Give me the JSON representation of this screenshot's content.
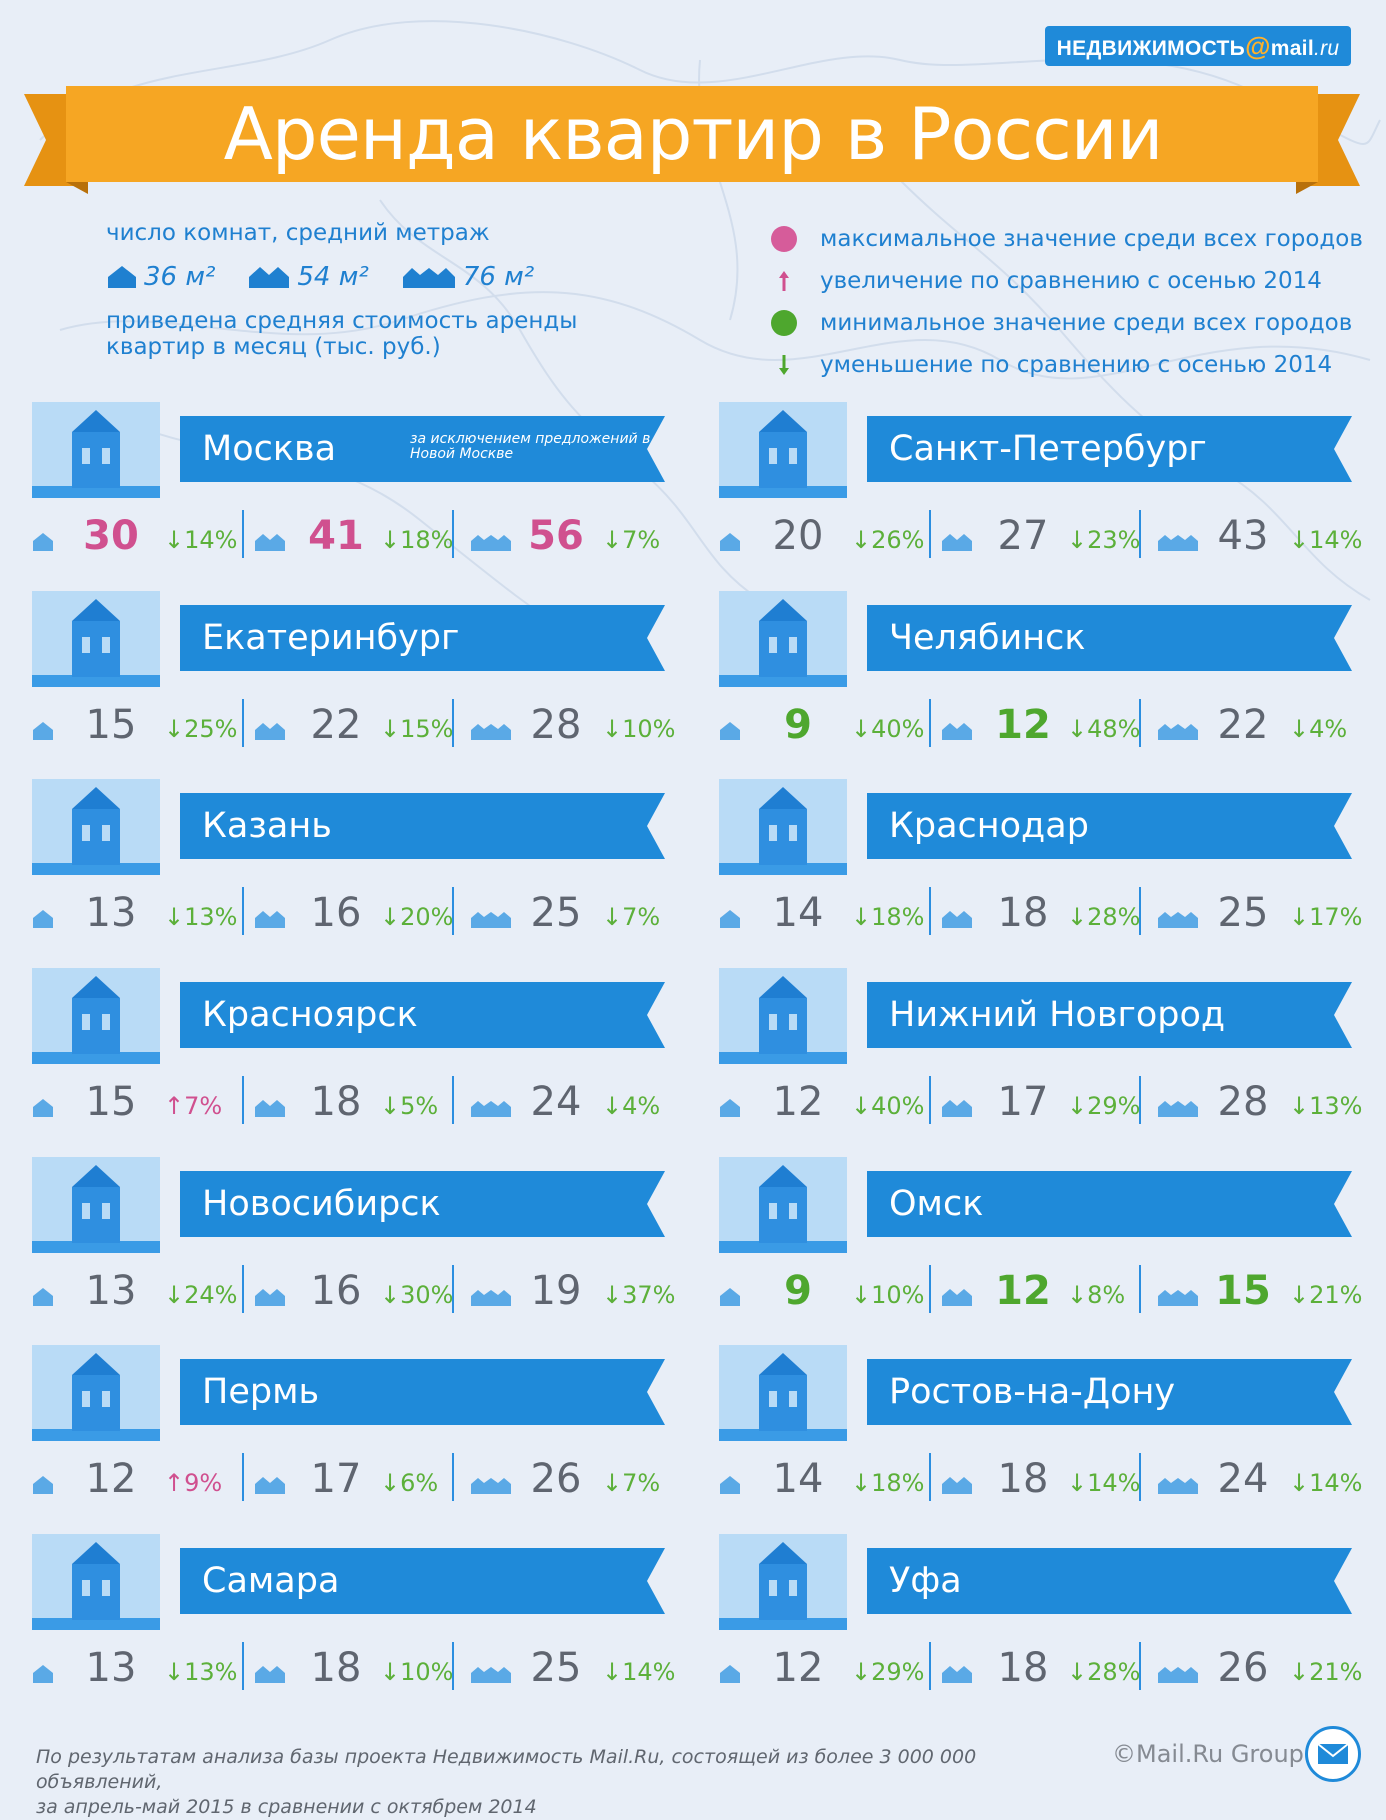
{
  "logo": {
    "brand": "НЕДВИЖИМОСТЬ",
    "at": "@",
    "domain": "mail",
    "tld": ".ru"
  },
  "title": "Аренда квартир в России",
  "legend": {
    "rooms_heading": "число комнат, средний метраж",
    "sizes": [
      "36 м²",
      "54 м²",
      "76 м²"
    ],
    "price_note_1": "приведена средняя стоимость аренды",
    "price_note_2": "квартир в месяц (тыс. руб.)",
    "items": [
      {
        "mark": "pink-dot",
        "text": "максимальное значение среди всех городов"
      },
      {
        "mark": "up-arrow",
        "text": "увеличение по сравнению с осенью 2014"
      },
      {
        "mark": "green-dot",
        "text": "минимальное значение среди всех городов"
      },
      {
        "mark": "down-arrow",
        "text": "уменьшение по сравнению с осенью 2014"
      }
    ]
  },
  "colors": {
    "max": "#d0508f",
    "min": "#4ea72e",
    "up": "#d0508f",
    "down": "#5cb03a",
    "banner": "#1f8ad9",
    "ribbon": "#f6a623"
  },
  "cities": [
    {
      "name": "Москва",
      "note": "за исключением предложений в Новой Москве",
      "icon": "kremlin-tower-icon",
      "values": [
        {
          "price": "30",
          "type": "max",
          "dir": "down",
          "change": "14%"
        },
        {
          "price": "41",
          "type": "max",
          "dir": "down",
          "change": "18%"
        },
        {
          "price": "56",
          "type": "max",
          "dir": "down",
          "change": "7%"
        }
      ]
    },
    {
      "name": "Санкт-Петербург",
      "note": "",
      "icon": "drawbridge-icon",
      "values": [
        {
          "price": "20",
          "type": "",
          "dir": "down",
          "change": "26%"
        },
        {
          "price": "27",
          "type": "",
          "dir": "down",
          "change": "23%"
        },
        {
          "price": "43",
          "type": "",
          "dir": "down",
          "change": "14%"
        }
      ]
    },
    {
      "name": "Екатеринбург",
      "note": "",
      "icon": "city-tower-icon",
      "values": [
        {
          "price": "15",
          "type": "",
          "dir": "down",
          "change": "25%"
        },
        {
          "price": "22",
          "type": "",
          "dir": "down",
          "change": "15%"
        },
        {
          "price": "28",
          "type": "",
          "dir": "down",
          "change": "10%"
        }
      ]
    },
    {
      "name": "Челябинск",
      "note": "",
      "icon": "monument-icon",
      "values": [
        {
          "price": "9",
          "type": "min",
          "dir": "down",
          "change": "40%"
        },
        {
          "price": "12",
          "type": "min",
          "dir": "down",
          "change": "48%"
        },
        {
          "price": "22",
          "type": "",
          "dir": "down",
          "change": "4%"
        }
      ]
    },
    {
      "name": "Казань",
      "note": "",
      "icon": "mosque-icon",
      "values": [
        {
          "price": "13",
          "type": "",
          "dir": "down",
          "change": "13%"
        },
        {
          "price": "16",
          "type": "",
          "dir": "down",
          "change": "20%"
        },
        {
          "price": "25",
          "type": "",
          "dir": "down",
          "change": "7%"
        }
      ]
    },
    {
      "name": "Краснодар",
      "note": "",
      "icon": "arch-gate-icon",
      "values": [
        {
          "price": "14",
          "type": "",
          "dir": "down",
          "change": "18%"
        },
        {
          "price": "18",
          "type": "",
          "dir": "down",
          "change": "28%"
        },
        {
          "price": "25",
          "type": "",
          "dir": "down",
          "change": "17%"
        }
      ]
    },
    {
      "name": "Красноярск",
      "note": "",
      "icon": "bridge-icon",
      "values": [
        {
          "price": "15",
          "type": "",
          "dir": "up",
          "change": "7%"
        },
        {
          "price": "18",
          "type": "",
          "dir": "down",
          "change": "5%"
        },
        {
          "price": "24",
          "type": "",
          "dir": "down",
          "change": "4%"
        }
      ]
    },
    {
      "name": "Нижний Новгород",
      "note": "",
      "icon": "fortress-tower-icon",
      "values": [
        {
          "price": "12",
          "type": "",
          "dir": "down",
          "change": "40%"
        },
        {
          "price": "17",
          "type": "",
          "dir": "down",
          "change": "29%"
        },
        {
          "price": "28",
          "type": "",
          "dir": "down",
          "change": "13%"
        }
      ]
    },
    {
      "name": "Новосибирск",
      "note": "",
      "icon": "opera-theatre-icon",
      "values": [
        {
          "price": "13",
          "type": "",
          "dir": "down",
          "change": "24%"
        },
        {
          "price": "16",
          "type": "",
          "dir": "down",
          "change": "30%"
        },
        {
          "price": "19",
          "type": "",
          "dir": "down",
          "change": "37%"
        }
      ]
    },
    {
      "name": "Омск",
      "note": "",
      "icon": "palace-icon",
      "values": [
        {
          "price": "9",
          "type": "min",
          "dir": "down",
          "change": "10%"
        },
        {
          "price": "12",
          "type": "min",
          "dir": "down",
          "change": "8%"
        },
        {
          "price": "15",
          "type": "min",
          "dir": "down",
          "change": "21%"
        }
      ]
    },
    {
      "name": "Пермь",
      "note": "",
      "icon": "theatre-icon",
      "values": [
        {
          "price": "12",
          "type": "",
          "dir": "up",
          "change": "9%"
        },
        {
          "price": "17",
          "type": "",
          "dir": "down",
          "change": "6%"
        },
        {
          "price": "26",
          "type": "",
          "dir": "down",
          "change": "7%"
        }
      ]
    },
    {
      "name": "Ростов-на-Дону",
      "note": "",
      "icon": "cathedral-icon",
      "values": [
        {
          "price": "14",
          "type": "",
          "dir": "down",
          "change": "18%"
        },
        {
          "price": "18",
          "type": "",
          "dir": "down",
          "change": "14%"
        },
        {
          "price": "24",
          "type": "",
          "dir": "down",
          "change": "14%"
        }
      ]
    },
    {
      "name": "Самара",
      "note": "",
      "icon": "station-icon",
      "values": [
        {
          "price": "13",
          "type": "",
          "dir": "down",
          "change": "13%"
        },
        {
          "price": "18",
          "type": "",
          "dir": "down",
          "change": "10%"
        },
        {
          "price": "25",
          "type": "",
          "dir": "down",
          "change": "14%"
        }
      ]
    },
    {
      "name": "Уфа",
      "note": "",
      "icon": "minaret-mosque-icon",
      "values": [
        {
          "price": "12",
          "type": "",
          "dir": "down",
          "change": "29%"
        },
        {
          "price": "18",
          "type": "",
          "dir": "down",
          "change": "28%"
        },
        {
          "price": "26",
          "type": "",
          "dir": "down",
          "change": "21%"
        }
      ]
    }
  ],
  "footer": {
    "line1": "По результатам анализа базы проекта Недвижимость Mail.Ru, состоящей из более 3 000 000 объявлений,",
    "line2": "за апрель-май 2015 в сравнении с октябрем 2014",
    "copyright": "©Mail.Ru Group"
  }
}
